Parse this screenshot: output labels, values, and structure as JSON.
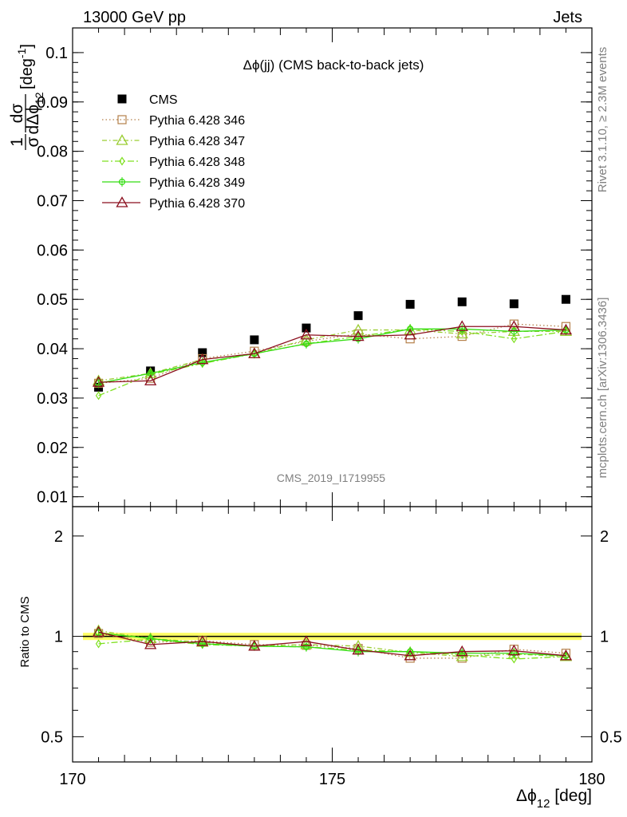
{
  "header": {
    "left": "13000 GeV pp",
    "right": "Jets"
  },
  "side_text": {
    "rivet": "Rivet 3.1.10, ≥ 2.3M events",
    "mcplots": "mcplots.cern.ch [arXiv:1306.3436]"
  },
  "analysis_id": "CMS_2019_I1719955",
  "chart_data": [
    {
      "type": "line",
      "title": "Δϕ(jj) (CMS back-to-back jets)",
      "ylabel": "1/σ dσ/dΔϕ_12 [deg^-1]",
      "xlabel": "Δϕ_12 [deg]",
      "xlim": [
        170,
        180
      ],
      "ylim": [
        0.008,
        0.105
      ],
      "yticks": [
        "0.01",
        "0.02",
        "0.03",
        "0.04",
        "0.05",
        "0.06",
        "0.07",
        "0.08",
        "0.09",
        "0.1"
      ],
      "xticks": [
        "170",
        "175",
        "180"
      ],
      "legend_position": "top-left",
      "x": [
        170.5,
        171.5,
        172.5,
        173.5,
        174.5,
        175.5,
        176.5,
        177.5,
        178.5,
        179.5
      ],
      "series": [
        {
          "name": "CMS",
          "color": "#000000",
          "marker": "square",
          "values": [
            0.0322,
            0.0355,
            0.0392,
            0.0418,
            0.0442,
            0.0467,
            0.049,
            0.0495,
            0.0491,
            0.05
          ]
        },
        {
          "name": "Pythia 6.428 346",
          "color": "#b5804a",
          "marker": "open-square",
          "dash": "dot",
          "values": [
            0.033,
            0.034,
            0.038,
            0.0395,
            0.0415,
            0.043,
            0.042,
            0.0425,
            0.045,
            0.0445
          ]
        },
        {
          "name": "Pythia 6.428 347",
          "color": "#9acd32",
          "marker": "open-triangle",
          "dash": "dashdot",
          "values": [
            0.0335,
            0.035,
            0.0378,
            0.039,
            0.0418,
            0.0438,
            0.0438,
            0.043,
            0.0435,
            0.0435
          ]
        },
        {
          "name": "Pythia 6.428 348",
          "color": "#7fe020",
          "marker": "open-diamond",
          "dash": "dashdotlong",
          "values": [
            0.0305,
            0.0348,
            0.037,
            0.039,
            0.041,
            0.0425,
            0.044,
            0.0435,
            0.042,
            0.0435
          ]
        },
        {
          "name": "Pythia 6.428 349",
          "color": "#33dd11",
          "marker": "open-circle",
          "dash": "solid",
          "values": [
            0.033,
            0.035,
            0.0372,
            0.039,
            0.041,
            0.042,
            0.044,
            0.044,
            0.0435,
            0.0438
          ]
        },
        {
          "name": "Pythia 6.428 370",
          "color": "#8b0f1e",
          "marker": "open-triangle",
          "dash": "solid",
          "values": [
            0.0332,
            0.0335,
            0.0378,
            0.039,
            0.0428,
            0.0425,
            0.0428,
            0.0445,
            0.0445,
            0.0438
          ]
        }
      ]
    },
    {
      "type": "line",
      "ylabel": "Ratio to CMS",
      "xlabel": "Δϕ_12 [deg]",
      "xlim": [
        170,
        180
      ],
      "ylim": [
        0.42,
        2.45
      ],
      "yscale": "log",
      "yticks": [
        "0.5",
        "1",
        "2"
      ],
      "reference_band": {
        "lower": 0.975,
        "upper": 1.025,
        "color": "#ffff66"
      },
      "x": [
        170.5,
        171.5,
        172.5,
        173.5,
        174.5,
        175.5,
        176.5,
        177.5,
        178.5,
        179.5
      ],
      "series": [
        {
          "name": "Pythia 6.428 346",
          "values": [
            1.02,
            0.96,
            0.97,
            0.945,
            0.94,
            0.92,
            0.86,
            0.86,
            0.915,
            0.89
          ]
        },
        {
          "name": "Pythia 6.428 347",
          "values": [
            1.04,
            0.985,
            0.96,
            0.935,
            0.945,
            0.935,
            0.895,
            0.87,
            0.885,
            0.87
          ]
        },
        {
          "name": "Pythia 6.428 348",
          "values": [
            0.95,
            0.98,
            0.945,
            0.935,
            0.93,
            0.91,
            0.9,
            0.88,
            0.855,
            0.87
          ]
        },
        {
          "name": "Pythia 6.428 349",
          "values": [
            1.025,
            0.985,
            0.95,
            0.935,
            0.93,
            0.9,
            0.9,
            0.89,
            0.89,
            0.875
          ]
        },
        {
          "name": "Pythia 6.428 370",
          "values": [
            1.03,
            0.945,
            0.965,
            0.935,
            0.965,
            0.91,
            0.875,
            0.9,
            0.905,
            0.875
          ]
        }
      ]
    }
  ]
}
